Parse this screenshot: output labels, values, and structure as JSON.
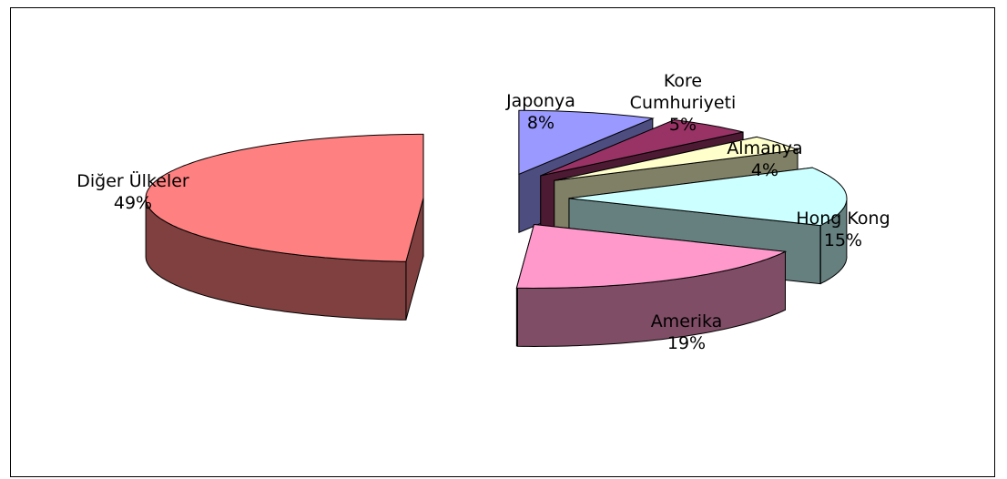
{
  "chart_data": {
    "type": "pie",
    "title": "",
    "slices": [
      {
        "label": "Japonya",
        "value": 8,
        "value_label": "8%",
        "color": "#9999ff",
        "side_color": "#4d4d80",
        "exploded": true
      },
      {
        "label_lines": [
          "Kore",
          "Cumhuriyeti"
        ],
        "label": "Kore Cumhuriyeti",
        "value": 5,
        "value_label": "5%",
        "color": "#993366",
        "side_color": "#4d1a33",
        "exploded": true
      },
      {
        "label": "Almanya",
        "value": 4,
        "value_label": "4%",
        "color": "#ffffcc",
        "side_color": "#808066",
        "exploded": true
      },
      {
        "label": "Hong Kong",
        "value": 15,
        "value_label": "15%",
        "color": "#ccffff",
        "side_color": "#668080",
        "exploded": true
      },
      {
        "label": "Amerika",
        "value": 19,
        "value_label": "19%",
        "color": "#ff99cc",
        "side_color": "#804d66",
        "exploded": true
      },
      {
        "label": "Diğer Ülkeler",
        "value": 49,
        "value_label": "49%",
        "color": "#ff8080",
        "side_color": "#804040",
        "exploded": true
      }
    ],
    "legend": "none",
    "three_d": true
  }
}
